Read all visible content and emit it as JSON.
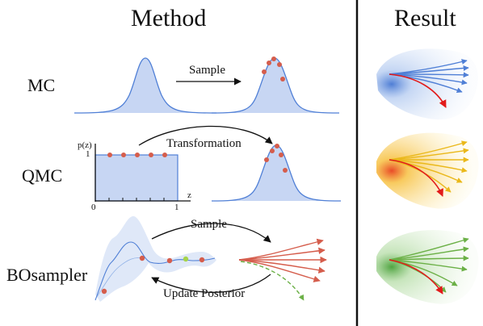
{
  "titles": {
    "method": "Method",
    "result": "Result"
  },
  "rows": {
    "mc": "MC",
    "qmc": "QMC",
    "bo": "BOsampler"
  },
  "edges": {
    "mc_sample": "Sample",
    "qmc_transformation": "Transformation",
    "bo_sample": "Sample",
    "bo_update": "Update Posterior"
  },
  "axes": {
    "pz": "p(z)",
    "one_y": "1",
    "zero": "0",
    "one_x": "1",
    "z": "z"
  },
  "colors": {
    "blue": "#4f7fd6",
    "blue_fill": "#c7d6f3",
    "point_red": "#d55d4c",
    "yellow": "#f2c51f",
    "green": "#6bb046",
    "red_arrow": "#e21b1b",
    "divider": "#111111"
  }
}
